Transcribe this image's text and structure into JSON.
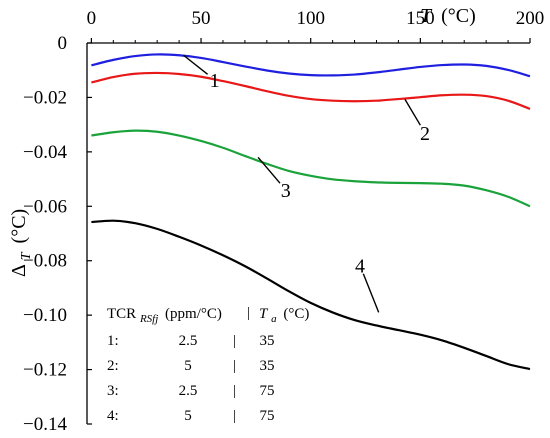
{
  "chart_data": {
    "type": "line",
    "x_axis": {
      "label_var": "T",
      "label_unit": "(°C)",
      "range": [
        -2,
        200
      ],
      "ticks": [
        0,
        50,
        100,
        150,
        200
      ],
      "position": "top"
    },
    "y_axis": {
      "label_main": "Δ",
      "label_sub": "T",
      "label_unit": "(°C)",
      "range": [
        -0.14,
        0
      ],
      "ticks": [
        0,
        -0.02,
        -0.04,
        -0.06,
        -0.08,
        -0.1,
        -0.12,
        -0.14
      ],
      "tick_labels": [
        "0",
        "−0.02",
        "−0.04",
        "−0.06",
        "−0.08",
        "−0.10",
        "−0.12",
        "−0.14"
      ]
    },
    "grid": false,
    "series": [
      {
        "callout": "1",
        "color": "#1f1fe0",
        "x": [
          0,
          10,
          20,
          30,
          40,
          50,
          60,
          70,
          80,
          90,
          100,
          110,
          120,
          130,
          140,
          150,
          160,
          170,
          180,
          190,
          200
        ],
        "y": [
          -0.0082,
          -0.0062,
          -0.0048,
          -0.0042,
          -0.0045,
          -0.0055,
          -0.007,
          -0.0086,
          -0.0101,
          -0.0112,
          -0.0118,
          -0.0119,
          -0.0116,
          -0.0108,
          -0.0098,
          -0.0088,
          -0.0081,
          -0.0079,
          -0.0084,
          -0.0099,
          -0.0122
        ]
      },
      {
        "callout": "2",
        "color": "#e81818",
        "x": [
          0,
          10,
          20,
          30,
          40,
          50,
          60,
          70,
          80,
          90,
          100,
          110,
          120,
          130,
          140,
          150,
          160,
          170,
          180,
          190,
          200
        ],
        "y": [
          -0.0145,
          -0.0125,
          -0.0113,
          -0.011,
          -0.0114,
          -0.0124,
          -0.014,
          -0.0158,
          -0.0177,
          -0.0194,
          -0.0206,
          -0.0212,
          -0.0214,
          -0.0212,
          -0.0206,
          -0.0199,
          -0.0192,
          -0.019,
          -0.0195,
          -0.0212,
          -0.0242
        ]
      },
      {
        "callout": "3",
        "color": "#1aa33a",
        "x": [
          0,
          10,
          20,
          30,
          40,
          50,
          60,
          70,
          80,
          90,
          100,
          110,
          120,
          130,
          140,
          150,
          160,
          170,
          180,
          190,
          200
        ],
        "y": [
          -0.034,
          -0.0328,
          -0.0322,
          -0.0326,
          -0.034,
          -0.036,
          -0.0385,
          -0.0415,
          -0.0444,
          -0.047,
          -0.0488,
          -0.0501,
          -0.0508,
          -0.0512,
          -0.0514,
          -0.0515,
          -0.0517,
          -0.0524,
          -0.0541,
          -0.0565,
          -0.06
        ]
      },
      {
        "callout": "4",
        "color": "#000000",
        "x": [
          0,
          10,
          20,
          30,
          40,
          50,
          60,
          70,
          80,
          90,
          100,
          110,
          120,
          130,
          140,
          150,
          160,
          170,
          180,
          190,
          200
        ],
        "y": [
          -0.0658,
          -0.0653,
          -0.0662,
          -0.0683,
          -0.0712,
          -0.0744,
          -0.078,
          -0.082,
          -0.0865,
          -0.0912,
          -0.0955,
          -0.099,
          -0.1018,
          -0.1038,
          -0.1055,
          -0.1072,
          -0.1093,
          -0.112,
          -0.115,
          -0.118,
          -0.1198
        ]
      }
    ],
    "callouts": [
      {
        "label": "1",
        "line_from": [
          42,
          -0.0045
        ],
        "line_to": [
          53,
          -0.0115
        ]
      },
      {
        "label": "2",
        "line_from": [
          143,
          -0.0207
        ],
        "line_to": [
          150,
          -0.0302
        ]
      },
      {
        "label": "3",
        "line_from": [
          76,
          -0.042
        ],
        "line_to": [
          86,
          -0.0515
        ]
      },
      {
        "label": "4",
        "line_from": [
          131,
          -0.099
        ],
        "line_to": [
          124,
          -0.0848
        ]
      }
    ],
    "legend_table": {
      "header": {
        "col1_main": "TCR",
        "col1_sub": "RSfj",
        "col1_unit": "(ppm/°C)",
        "separator": "|",
        "col2_main": "T",
        "col2_sub": "a",
        "col2_unit": "(°C)"
      },
      "rows": [
        {
          "id": "1:",
          "tcr": "2.5",
          "sep": "|",
          "ta": "35"
        },
        {
          "id": "2:",
          "tcr": "5",
          "sep": "|",
          "ta": "35"
        },
        {
          "id": "3:",
          "tcr": "2.5",
          "sep": "|",
          "ta": "75"
        },
        {
          "id": "4:",
          "tcr": "5",
          "sep": "|",
          "ta": "75"
        }
      ]
    }
  }
}
